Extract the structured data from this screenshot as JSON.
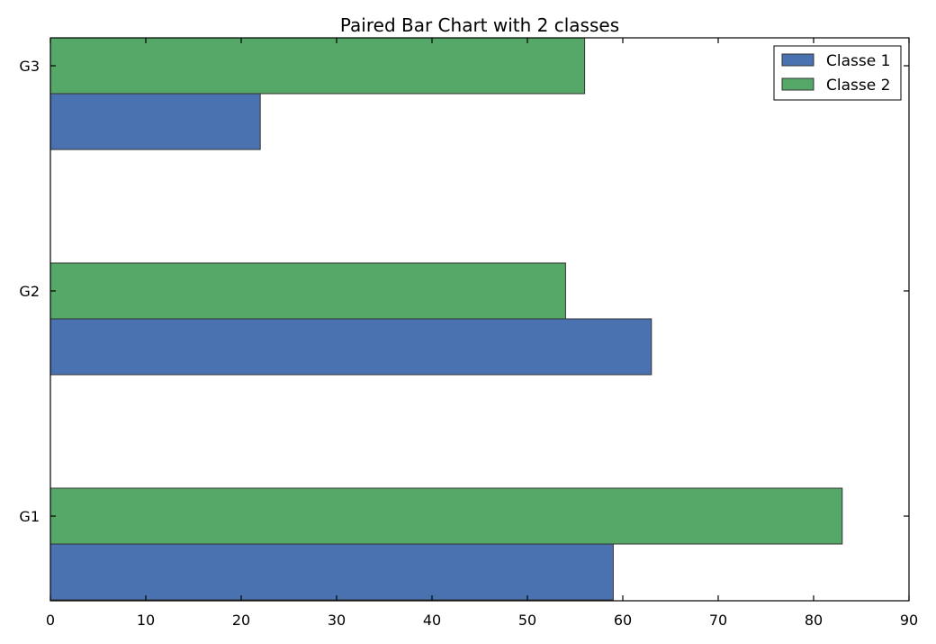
{
  "chart_data": {
    "type": "bar",
    "orientation": "horizontal",
    "title": "Paired Bar Chart with 2 classes",
    "xlabel": "",
    "ylabel": "",
    "categories": [
      "G1",
      "G2",
      "G3"
    ],
    "series": [
      {
        "name": "Classe 1",
        "values": [
          59,
          63,
          22
        ],
        "color": "#4a72b0"
      },
      {
        "name": "Classe 2",
        "values": [
          83,
          54,
          56
        ],
        "color": "#55a868"
      }
    ],
    "xlim": [
      0,
      90
    ],
    "xticks": [
      0,
      10,
      20,
      30,
      40,
      50,
      60,
      70,
      80,
      90
    ],
    "grid": false,
    "legend_position": "top-right"
  }
}
